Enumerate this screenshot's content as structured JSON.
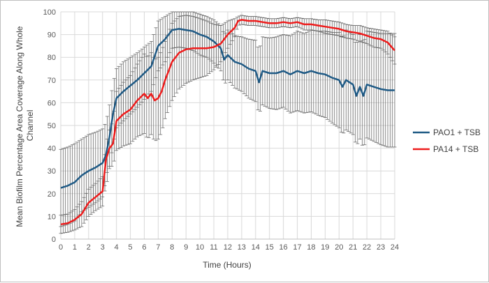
{
  "chart_data": {
    "type": "line",
    "xlabel": "Time (Hours)",
    "ylabel_lines": [
      "Mean Biofilm Percentage Area Coverage Along Whole",
      "Channel"
    ],
    "xlim": [
      0,
      24
    ],
    "ylim": [
      0,
      100
    ],
    "x_ticks": [
      0,
      1,
      2,
      3,
      4,
      5,
      6,
      7,
      8,
      9,
      10,
      11,
      12,
      13,
      14,
      15,
      16,
      17,
      18,
      19,
      20,
      21,
      22,
      23,
      24
    ],
    "y_ticks": [
      0,
      10,
      20,
      30,
      40,
      50,
      60,
      70,
      80,
      90,
      100
    ],
    "grid": true,
    "legend_position": "right",
    "series": [
      {
        "name": "PAO1 + TSB",
        "color": "#1f5a85",
        "x": [
          0,
          0.5,
          1,
          1.5,
          2,
          2.5,
          3,
          3.25,
          3.5,
          3.75,
          4,
          4.5,
          5,
          5.5,
          6,
          6.5,
          7,
          7.5,
          8,
          8.5,
          9,
          9.5,
          10,
          10.5,
          11,
          11.5,
          11.75,
          12,
          12.5,
          13,
          13.5,
          14,
          14.25,
          14.5,
          15,
          15.5,
          16,
          16.5,
          17,
          17.5,
          18,
          18.5,
          19,
          19.5,
          20,
          20.25,
          20.5,
          21,
          21.25,
          21.5,
          21.75,
          22,
          22.5,
          23,
          23.5,
          24
        ],
        "y": [
          22.5,
          23.5,
          25,
          28,
          30,
          31.5,
          33.5,
          37,
          45,
          55,
          62,
          65,
          67.5,
          70,
          73,
          76,
          85,
          88,
          92,
          92.5,
          92,
          91.5,
          90,
          89,
          87,
          84,
          79,
          81,
          78,
          77,
          75,
          74,
          69,
          74,
          73,
          73,
          74,
          72.5,
          74,
          73,
          74,
          73,
          72.5,
          71,
          70,
          67,
          70,
          68,
          63,
          67,
          63,
          68,
          67,
          66,
          65.5,
          65.5
        ],
        "error": [
          17,
          17,
          17,
          16,
          16,
          15.5,
          15,
          14.5,
          14,
          13.5,
          13,
          13,
          12.5,
          12,
          11.5,
          11,
          11,
          10,
          8,
          8,
          8,
          8.5,
          9,
          9,
          9.5,
          10,
          11,
          11,
          11.5,
          12,
          13,
          13.5,
          14,
          15,
          15.5,
          16,
          16,
          17,
          17.5,
          17.5,
          18,
          18.5,
          19,
          20,
          21,
          21,
          22,
          22,
          22,
          23,
          23,
          23.5,
          24,
          24.5,
          25,
          25
        ]
      },
      {
        "name": "PA14 + TSB",
        "color": "#ee1c1c",
        "x": [
          0,
          0.5,
          1,
          1.5,
          2,
          2.5,
          3,
          3.25,
          3.5,
          3.75,
          4,
          4.5,
          5,
          5.5,
          6,
          6.25,
          6.5,
          6.75,
          7,
          7.25,
          7.5,
          8,
          8.5,
          9,
          9.5,
          10,
          10.5,
          11,
          11.5,
          12,
          12.5,
          12.75,
          13,
          13.5,
          14,
          14.5,
          15,
          15.5,
          16,
          16.5,
          17,
          17.5,
          18,
          18.5,
          19,
          19.5,
          20,
          20.5,
          21,
          21.5,
          22,
          22.5,
          23,
          23.5,
          24
        ],
        "y": [
          6.5,
          7,
          8.5,
          11,
          16,
          18.5,
          21,
          35,
          40,
          42,
          52,
          55,
          57,
          61,
          64,
          62,
          64,
          61,
          62,
          65,
          70,
          78,
          82,
          83.5,
          84,
          84,
          84,
          84.5,
          86,
          90,
          93,
          96,
          96.5,
          96,
          96,
          95.5,
          95,
          95,
          95.5,
          95,
          95.5,
          94.5,
          94.5,
          94,
          93.5,
          93,
          92.5,
          91.5,
          91,
          90.5,
          89.5,
          88.5,
          88,
          86.5,
          83
        ],
        "error": [
          4,
          4,
          4.5,
          5.5,
          6,
          6,
          6.5,
          7,
          8,
          10,
          13,
          14,
          15,
          16,
          17.5,
          18,
          18,
          18,
          18,
          18,
          17,
          17,
          16,
          15,
          14,
          13,
          12,
          10,
          8,
          6,
          4,
          2,
          2,
          2,
          2,
          2,
          2,
          2,
          2,
          2,
          2,
          2.5,
          2.5,
          2.5,
          3,
          3,
          3,
          3,
          3,
          3.5,
          3.5,
          4,
          4,
          5,
          6
        ]
      }
    ]
  }
}
